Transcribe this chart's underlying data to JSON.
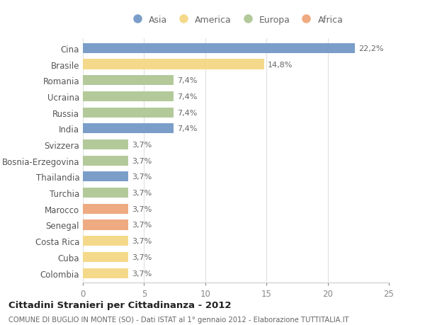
{
  "countries": [
    "Cina",
    "Brasile",
    "Romania",
    "Ucraina",
    "Russia",
    "India",
    "Svizzera",
    "Bosnia-Erzegovina",
    "Thailandia",
    "Turchia",
    "Marocco",
    "Senegal",
    "Costa Rica",
    "Cuba",
    "Colombia"
  ],
  "values": [
    22.2,
    14.8,
    7.4,
    7.4,
    7.4,
    7.4,
    3.7,
    3.7,
    3.7,
    3.7,
    3.7,
    3.7,
    3.7,
    3.7,
    3.7
  ],
  "labels": [
    "22,2%",
    "14,8%",
    "7,4%",
    "7,4%",
    "7,4%",
    "7,4%",
    "3,7%",
    "3,7%",
    "3,7%",
    "3,7%",
    "3,7%",
    "3,7%",
    "3,7%",
    "3,7%",
    "3,7%"
  ],
  "continents": [
    "Asia",
    "America",
    "Europa",
    "Europa",
    "Europa",
    "Asia",
    "Europa",
    "Europa",
    "Asia",
    "Europa",
    "Africa",
    "Africa",
    "America",
    "America",
    "America"
  ],
  "colors": {
    "Asia": "#7b9ec9",
    "America": "#f5d98a",
    "Europa": "#b3c99a",
    "Africa": "#eeaa80"
  },
  "legend_order": [
    "Asia",
    "America",
    "Europa",
    "Africa"
  ],
  "xlim": [
    0,
    25
  ],
  "xticks": [
    0,
    5,
    10,
    15,
    20,
    25
  ],
  "title1": "Cittadini Stranieri per Cittadinanza - 2012",
  "title2": "COMUNE DI BUGLIO IN MONTE (SO) - Dati ISTAT al 1° gennaio 2012 - Elaborazione TUTTITALIA.IT",
  "background_color": "#ffffff",
  "bar_height": 0.62,
  "grid_color": "#e0e0e0",
  "text_color": "#555555",
  "label_color": "#666666"
}
